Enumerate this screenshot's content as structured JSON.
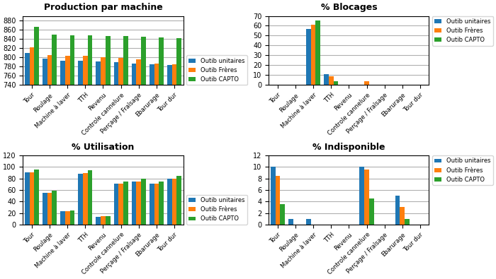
{
  "chart_data": [
    {
      "type": "bar",
      "title": "Production par machine",
      "categories": [
        "Tour",
        "Roulage",
        "Machine à laver",
        "TTH",
        "Revenu",
        "Controle cannelure",
        "Perçage / Fraîsage",
        "Ebarurage",
        "Tour dur"
      ],
      "series": [
        {
          "name": "Outib unitaires",
          "values": [
            810,
            797,
            793,
            793,
            791,
            789,
            787,
            785,
            784
          ]
        },
        {
          "name": "Outib Frères",
          "values": [
            822,
            805,
            804,
            803,
            801,
            799,
            795,
            787,
            785
          ]
        },
        {
          "name": "Outib CAPTO",
          "values": [
            866,
            850,
            848,
            848,
            847,
            846,
            845,
            843,
            841
          ]
        }
      ],
      "ylim": [
        740,
        890
      ],
      "yticks": [
        740,
        760,
        780,
        800,
        820,
        840,
        860,
        880
      ],
      "grid": true,
      "legend": "lower right"
    },
    {
      "type": "bar",
      "title": "% Blocages",
      "categories": [
        "Tour",
        "Roulage",
        "Machine à laver",
        "TTH",
        "Revenu",
        "Controle cannelure",
        "Perçage / Fraîsage",
        "Ebarurage",
        "Tour dur"
      ],
      "series": [
        {
          "name": "Outib unitaires",
          "values": [
            0,
            0,
            57,
            11,
            0,
            0,
            0,
            0,
            0
          ]
        },
        {
          "name": "Outib Frères",
          "values": [
            0,
            0,
            61,
            9,
            0,
            3.5,
            0,
            0.5,
            0
          ]
        },
        {
          "name": "Outib CAPTO",
          "values": [
            0,
            0,
            65,
            4,
            0,
            0,
            0,
            0,
            0
          ]
        }
      ],
      "ylim": [
        0,
        70
      ],
      "yticks": [
        0,
        10,
        20,
        30,
        40,
        50,
        60,
        70
      ],
      "grid": true,
      "legend": "upper right"
    },
    {
      "type": "bar",
      "title": "% Utilisation",
      "categories": [
        "Tour",
        "Roulage",
        "Machine à laver",
        "TTH",
        "Revenu",
        "Controle cannelure",
        "Perçage / Fraîsage",
        "Ebarurage",
        "Tour dur"
      ],
      "series": [
        {
          "name": "Outib unitaires",
          "values": [
            90,
            55,
            23,
            88,
            13,
            71,
            74,
            71,
            80
          ]
        },
        {
          "name": "Outib Frères",
          "values": [
            91,
            55,
            23,
            89,
            14,
            71,
            74,
            71,
            80
          ]
        },
        {
          "name": "Outib CAPTO",
          "values": [
            96,
            59,
            24,
            94,
            14,
            75,
            79,
            75,
            85
          ]
        }
      ],
      "ylim": [
        0,
        120
      ],
      "yticks": [
        0,
        20,
        40,
        60,
        80,
        100,
        120
      ],
      "grid": true,
      "legend": "lower right"
    },
    {
      "type": "bar",
      "title": "% Indisponible",
      "categories": [
        "Tour",
        "Roulage",
        "Machine à laver",
        "TTH",
        "Revenu",
        "Controle cannelure",
        "Perçage / Fraîsage",
        "Ebarurage",
        "Tour dur"
      ],
      "series": [
        {
          "name": "Outib unitaires",
          "values": [
            10,
            1,
            1,
            0,
            0,
            10,
            0,
            5,
            0
          ]
        },
        {
          "name": "Outib Frères",
          "values": [
            8.5,
            0,
            0,
            0,
            0,
            9.5,
            0,
            3,
            0
          ]
        },
        {
          "name": "Outib CAPTO",
          "values": [
            3.5,
            0,
            0,
            0,
            0,
            4.5,
            0,
            1,
            0
          ]
        }
      ],
      "ylim": [
        0,
        12
      ],
      "yticks": [
        0,
        2,
        4,
        6,
        8,
        10,
        12
      ],
      "grid": true,
      "legend": "upper right"
    }
  ]
}
